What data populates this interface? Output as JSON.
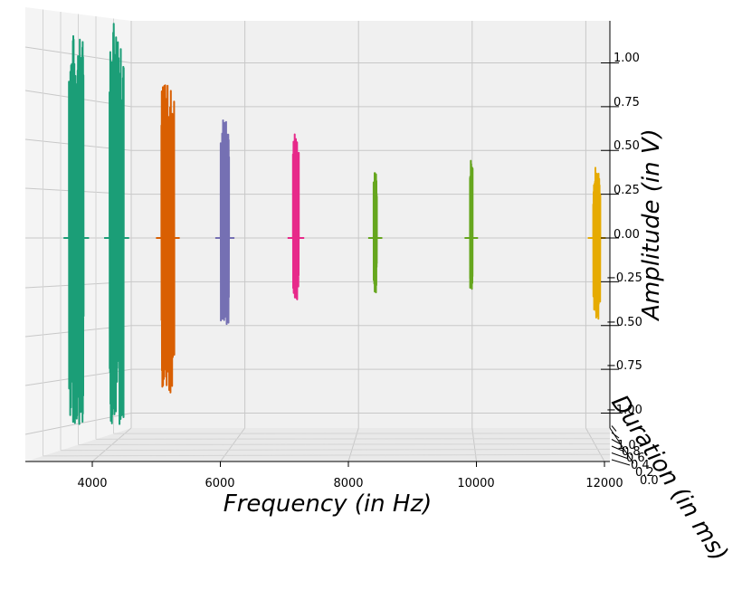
{
  "chart_data": {
    "type": "line",
    "projection": "3d",
    "xlabel": "Frequency (in Hz)",
    "ylabel": "Amplitude (in V)",
    "zlabel": "Duration (in ms)",
    "x_ticks": [
      "4000",
      "6000",
      "8000",
      "10000",
      "12000"
    ],
    "y_ticks": [
      "1.00",
      "0.75",
      "0.50",
      "0.25",
      "0.00",
      "−0.25",
      "−0.50",
      "−0.75",
      "−1.00"
    ],
    "z_ticks": [
      "0.0",
      "0.2",
      "0.4",
      "0.6",
      "0.8",
      "1.0"
    ],
    "xlim": [
      3000,
      12000
    ],
    "ylim": [
      -1.1,
      1.1
    ],
    "grid": true,
    "series": [
      {
        "center_hz": 3750,
        "width_hz": 230,
        "amp_max": 1.15,
        "amp_min": -1.06,
        "color": "#1b9e77"
      },
      {
        "center_hz": 4380,
        "width_hz": 220,
        "amp_max": 1.22,
        "amp_min": -1.06,
        "color": "#1b9e77"
      },
      {
        "center_hz": 5180,
        "width_hz": 200,
        "amp_max": 0.87,
        "amp_min": -0.88,
        "color": "#d95f02"
      },
      {
        "center_hz": 6070,
        "width_hz": 130,
        "amp_max": 0.67,
        "amp_min": -0.49,
        "color": "#7570b3"
      },
      {
        "center_hz": 7180,
        "width_hz": 90,
        "amp_max": 0.59,
        "amp_min": -0.35,
        "color": "#e7298a"
      },
      {
        "center_hz": 8420,
        "width_hz": 50,
        "amp_max": 0.37,
        "amp_min": -0.31,
        "color": "#66a61e"
      },
      {
        "center_hz": 9920,
        "width_hz": 40,
        "amp_max": 0.44,
        "amp_min": -0.29,
        "color": "#66a61e"
      },
      {
        "center_hz": 11880,
        "width_hz": 110,
        "amp_max": 0.4,
        "amp_min": -0.46,
        "color": "#e6ab02"
      }
    ]
  }
}
